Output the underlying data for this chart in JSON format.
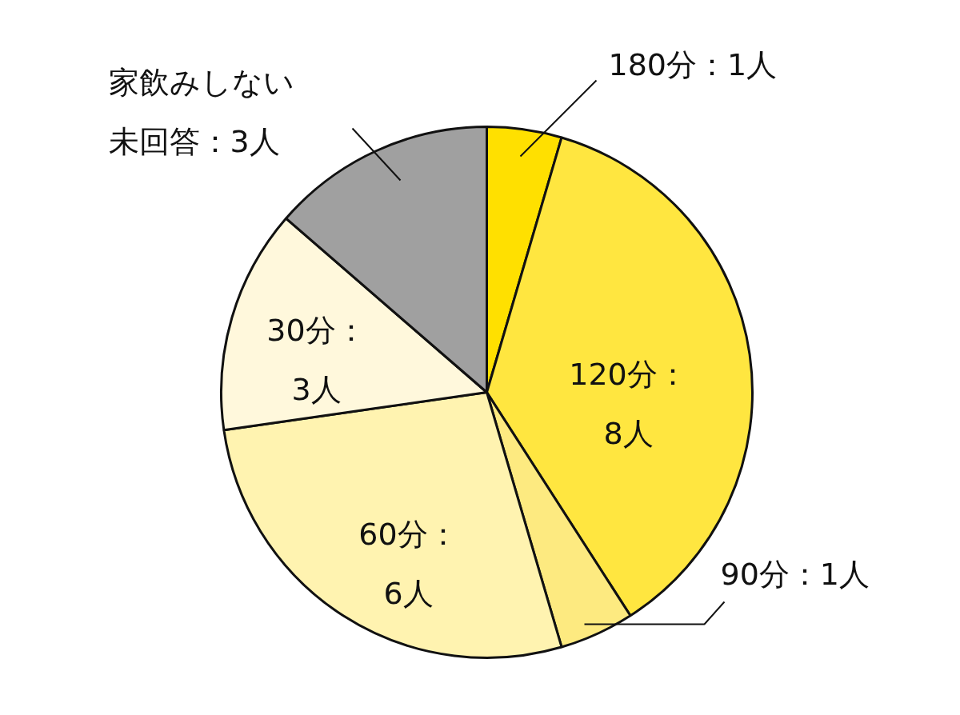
{
  "chart_data": {
    "type": "pie",
    "categories": [
      "180分：1人",
      "120分：\n8人",
      "90分：1人",
      "60分：\n6人",
      "30分：\n3人",
      "家飲みしない未回答：3人"
    ],
    "values": [
      1,
      8,
      1,
      6,
      3,
      3
    ],
    "colors": [
      "#ffe000",
      "#ffe640",
      "#fdea80",
      "#fff3b0",
      "#fff8dc",
      "#a0a0a0"
    ]
  }
}
